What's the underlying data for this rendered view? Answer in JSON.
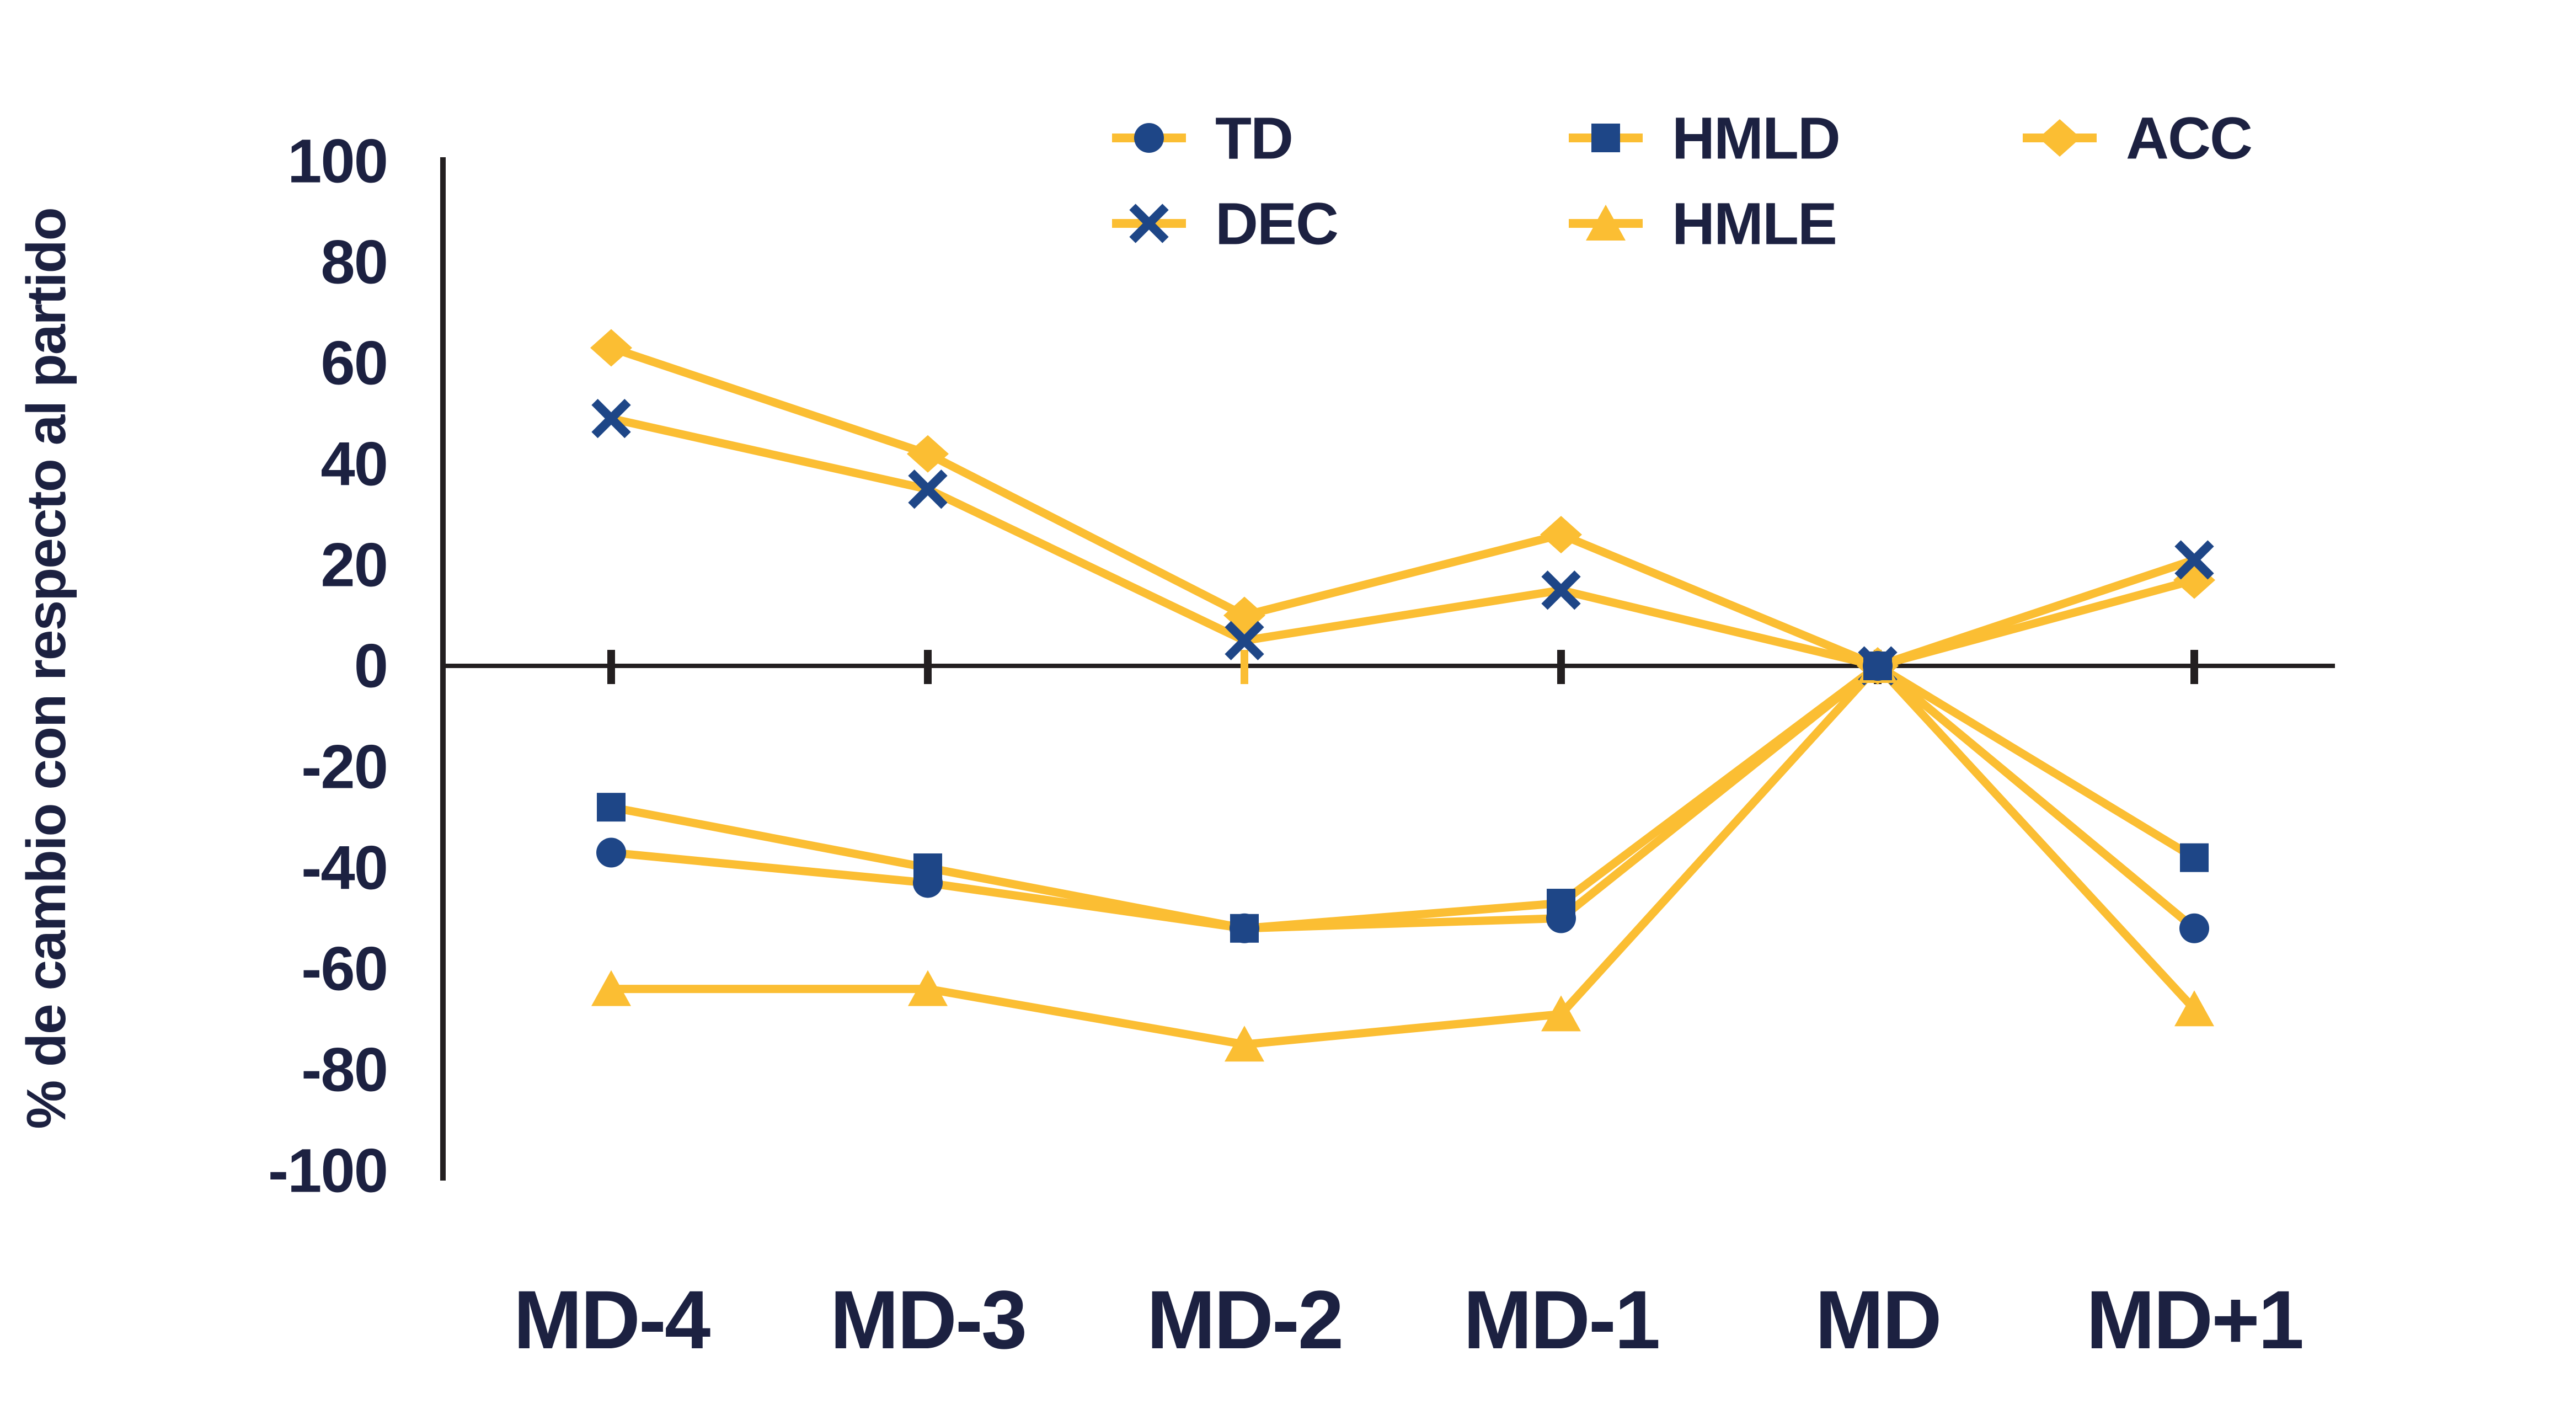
{
  "figure": {
    "background": "#FFFFFF"
  },
  "chart_data": {
    "type": "line",
    "title": "",
    "xlabel": "",
    "ylabel": "% de cambio con respecto al partido",
    "categories": [
      "MD-4",
      "MD-3",
      "MD-2",
      "MD-1",
      "MD",
      "MD+1"
    ],
    "series": [
      {
        "name": "TD",
        "marker": "circle",
        "marker_color": "#1E4687",
        "values": [
          -37,
          -43,
          -52,
          -50,
          0,
          -52
        ]
      },
      {
        "name": "HMLD",
        "marker": "square",
        "marker_color": "#1E4687",
        "values": [
          -28,
          -40,
          -52,
          -47,
          0,
          -38
        ]
      },
      {
        "name": "ACC",
        "marker": "diamond",
        "marker_color": "#FBBE33",
        "values": [
          63,
          42,
          10,
          26,
          0,
          17
        ]
      },
      {
        "name": "DEC",
        "marker": "x",
        "marker_color": "#1E4687",
        "values": [
          49,
          35,
          5,
          15,
          0,
          21
        ]
      },
      {
        "name": "HMLE",
        "marker": "triangle",
        "marker_color": "#FBBE33",
        "values": [
          -64,
          -64,
          -75,
          -69,
          0,
          -68
        ]
      }
    ],
    "line_color": "#FBBE33",
    "ylim": [
      -100,
      100
    ],
    "y_ticks": [
      100,
      80,
      60,
      40,
      20,
      0,
      -20,
      -40,
      -60,
      -80,
      -100
    ],
    "grid": false,
    "legend_position": "top"
  },
  "colors": {
    "line_yellow": "#FBBE33",
    "marker_blue": "#1E4687",
    "text_navy": "#1C2141",
    "axis_black": "#231F20"
  }
}
